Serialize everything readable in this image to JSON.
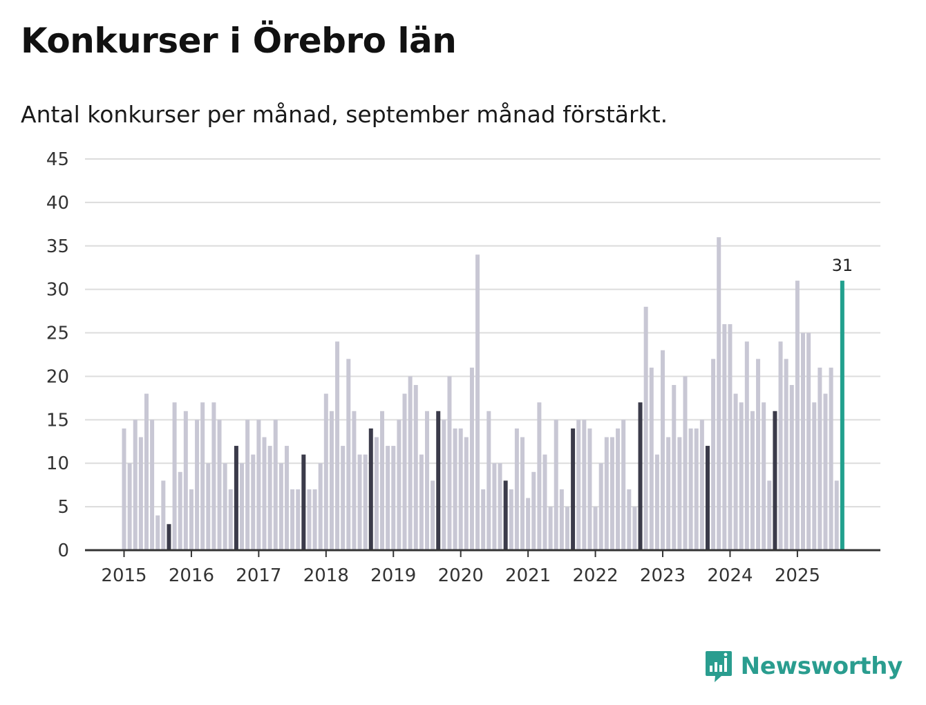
{
  "header": {
    "title": "Konkurser i Örebro län",
    "subtitle": "Antal konkurser per månad, september månad förstärkt."
  },
  "brand": {
    "name": "Newsworthy",
    "icon": "newsworthy-logo-icon"
  },
  "colors": {
    "bar": "#c8c7d4",
    "highlight": "#3b3b4a",
    "latest": "#22a08e",
    "grid": "#dcdcdc",
    "axis": "#333333",
    "brand": "#2a9d8f"
  },
  "chart_data": {
    "type": "bar",
    "title": "Konkurser i Örebro län",
    "xlabel": "",
    "ylabel": "",
    "ylim": [
      0,
      45
    ],
    "yticks": [
      "0",
      "5",
      "10",
      "15",
      "20",
      "25",
      "30",
      "35",
      "40",
      "45"
    ],
    "xticks": [
      "2015",
      "2016",
      "2017",
      "2018",
      "2019",
      "2020",
      "2021",
      "2022",
      "2023",
      "2024",
      "2025"
    ],
    "start": "2015-01",
    "highlight_month": "september",
    "latest_label": "31",
    "grid": true,
    "values": [
      14,
      10,
      15,
      13,
      18,
      15,
      4,
      8,
      3,
      17,
      9,
      16,
      7,
      15,
      17,
      10,
      17,
      15,
      10,
      7,
      12,
      10,
      15,
      11,
      15,
      13,
      12,
      15,
      10,
      12,
      7,
      7,
      11,
      7,
      7,
      10,
      18,
      16,
      24,
      12,
      22,
      16,
      11,
      11,
      14,
      13,
      16,
      12,
      12,
      15,
      18,
      20,
      19,
      11,
      16,
      8,
      16,
      15,
      20,
      14,
      14,
      13,
      21,
      34,
      7,
      16,
      10,
      10,
      8,
      7,
      14,
      13,
      6,
      9,
      17,
      11,
      5,
      15,
      7,
      5,
      14,
      15,
      15,
      14,
      5,
      10,
      13,
      13,
      14,
      15,
      7,
      5,
      17,
      28,
      21,
      11,
      23,
      13,
      19,
      13,
      20,
      14,
      14,
      15,
      12,
      22,
      36,
      26,
      26,
      18,
      17,
      24,
      16,
      22,
      17,
      8,
      16,
      24,
      22,
      19,
      31,
      25,
      25,
      17,
      21,
      18,
      21,
      8,
      31
    ]
  }
}
